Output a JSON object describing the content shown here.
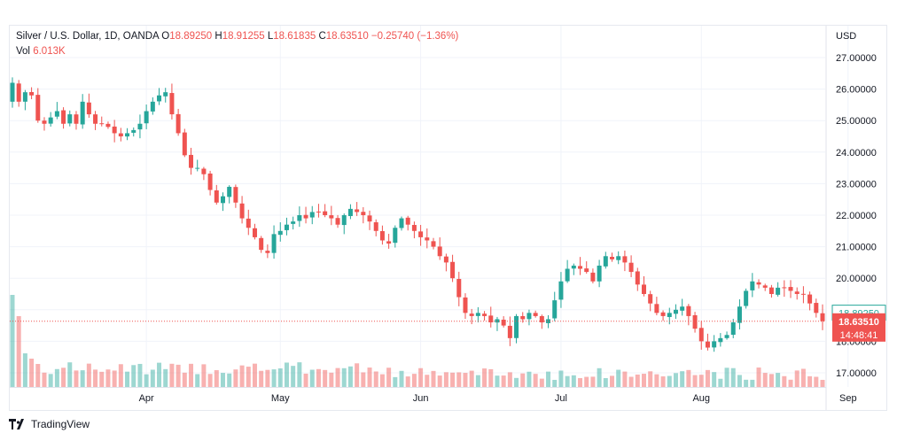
{
  "legend": {
    "symbol": "Silver / U.S. Dollar, 1D, OANDA",
    "open_label": "O",
    "open_value": "18.89250",
    "high_label": "H",
    "high_value": "18.91255",
    "low_label": "L",
    "low_value": "18.61835",
    "close_label": "C",
    "close_value": "18.63510",
    "change_value": "−0.25740 (−1.36%)",
    "vol_label": "Vol",
    "vol_value": "6.013K"
  },
  "footer": {
    "brand": "TradingView"
  },
  "colors": {
    "up": "#26a69a",
    "down": "#ef5350",
    "grid": "#f0f3fa",
    "text": "#131722"
  },
  "chart_data": {
    "type": "candlestick",
    "currency_label": "USD",
    "y_ticks": [
      "27.00000",
      "26.00000",
      "25.00000",
      "24.00000",
      "23.00000",
      "22.00000",
      "21.00000",
      "20.00000",
      "19.00000",
      "18.00000",
      "17.00000"
    ],
    "ylim": [
      16.6,
      27.3
    ],
    "x_ticks": [
      {
        "label": "Apr",
        "index": 21
      },
      {
        "label": "May",
        "index": 42
      },
      {
        "label": "Jun",
        "index": 64
      },
      {
        "label": "Jul",
        "index": 86
      },
      {
        "label": "Aug",
        "index": 108
      },
      {
        "label": "Sep",
        "index": 131
      }
    ],
    "open_price_tag": "18.89250",
    "last_price_tag": "18.63510",
    "countdown_tag": "14:48:41",
    "last_price": 18.6351,
    "open_price": 18.8925,
    "closes": [
      26.2,
      25.6,
      25.9,
      25.8,
      25.0,
      24.9,
      25.1,
      25.3,
      24.9,
      25.2,
      24.9,
      25.6,
      25.2,
      24.9,
      24.9,
      24.8,
      24.6,
      24.5,
      24.6,
      24.7,
      24.9,
      25.3,
      25.6,
      25.8,
      25.9,
      25.2,
      24.6,
      23.9,
      23.5,
      23.5,
      23.3,
      22.8,
      22.4,
      22.6,
      22.9,
      22.4,
      21.9,
      21.6,
      21.3,
      20.9,
      20.8,
      21.4,
      21.5,
      21.7,
      21.8,
      22.0,
      21.9,
      22.1,
      22.1,
      22.0,
      21.9,
      21.7,
      22.0,
      22.2,
      22.1,
      22.0,
      21.8,
      21.5,
      21.2,
      21.1,
      21.6,
      21.9,
      21.7,
      21.5,
      21.3,
      21.2,
      21.0,
      20.7,
      20.5,
      20.0,
      19.4,
      18.9,
      18.8,
      18.9,
      18.8,
      18.6,
      18.7,
      18.5,
      18.1,
      18.8,
      18.7,
      18.9,
      18.8,
      18.6,
      18.7,
      19.3,
      19.9,
      20.3,
      20.4,
      20.3,
      20.2,
      19.9,
      20.4,
      20.7,
      20.6,
      20.7,
      20.5,
      20.2,
      19.8,
      19.5,
      19.2,
      18.9,
      18.8,
      18.9,
      19.0,
      19.1,
      18.8,
      18.4,
      18.0,
      17.8,
      18.0,
      18.1,
      18.2,
      18.6,
      19.1,
      19.6,
      19.9,
      19.8,
      19.7,
      19.5,
      19.7,
      19.7,
      19.6,
      19.5,
      19.5,
      19.2,
      18.9,
      18.64
    ]
  }
}
